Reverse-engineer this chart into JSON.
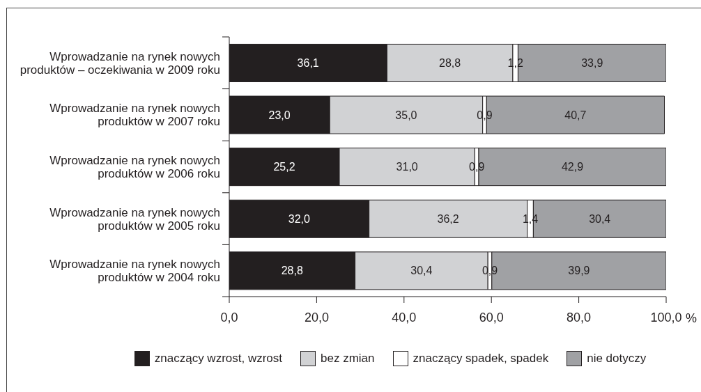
{
  "chart_data": {
    "type": "bar",
    "orientation": "horizontal",
    "stacked": true,
    "categories": [
      "Wprowadzanie na rynek nowych produktów – oczekiwania w 2009 roku",
      "Wprowadzanie na rynek nowych produktów w 2007 roku",
      "Wprowadzanie na rynek nowych produktów w 2006 roku",
      "Wprowadzanie na rynek nowych produktów w 2005 roku",
      "Wprowadzanie na rynek nowych produktów w 2004 roku"
    ],
    "series": [
      {
        "name": "znaczący wzrost, wzrost",
        "color": "#231f20",
        "values": [
          36.1,
          23.0,
          25.2,
          32.0,
          28.8
        ],
        "value_labels": [
          "36,1",
          "23,0",
          "25,2",
          "32,0",
          "28,8"
        ]
      },
      {
        "name": "bez zmian",
        "color": "#d1d2d4",
        "values": [
          28.8,
          35.0,
          31.0,
          36.2,
          30.4
        ],
        "value_labels": [
          "28,8",
          "35,0",
          "31,0",
          "36,2",
          "30,4"
        ]
      },
      {
        "name": "znaczący spadek, spadek",
        "color": "#ffffff",
        "values": [
          1.2,
          0.9,
          0.9,
          1.4,
          0.9
        ],
        "value_labels": [
          "1,2",
          "0,9",
          "0,9",
          "1,4",
          "0,9"
        ]
      },
      {
        "name": "nie dotyczy",
        "color": "#a0a1a4",
        "values": [
          33.9,
          40.7,
          42.9,
          30.4,
          39.9
        ],
        "value_labels": [
          "33,9",
          "40,7",
          "42,9",
          "30,4",
          "39,9"
        ]
      }
    ],
    "xlabel": "%",
    "xlim": [
      0,
      100
    ],
    "xticks": [
      {
        "value": 0,
        "label": "0,0"
      },
      {
        "value": 20,
        "label": "20,0"
      },
      {
        "value": 40,
        "label": "40,0"
      },
      {
        "value": 60,
        "label": "60,0"
      },
      {
        "value": 80,
        "label": "80,0"
      },
      {
        "value": 100,
        "label": "100,0"
      }
    ],
    "legend": "bottom"
  }
}
